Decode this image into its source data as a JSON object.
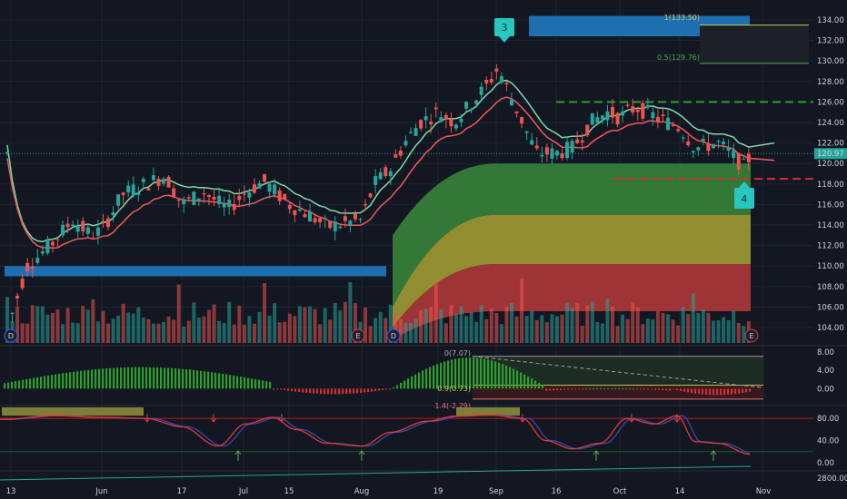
{
  "chart_data": {
    "type": "candlestick",
    "title": "",
    "ylim": [
      102.5,
      135.5
    ],
    "y_ticks": [
      "134.00",
      "132.00",
      "130.00",
      "128.00",
      "126.00",
      "124.00",
      "122.00",
      "120.00",
      "118.00",
      "116.00",
      "114.00",
      "112.00",
      "110.00",
      "108.00",
      "106.00",
      "104.00"
    ],
    "x_ticks": [
      "13",
      "Jun",
      "17",
      "Jul",
      "15",
      "Aug",
      "19",
      "Sep",
      "16",
      "Oct",
      "14",
      "Nov"
    ],
    "last_price": "120.97",
    "last_price_value": 120.97,
    "fib_labels": [
      "1(133.50)",
      "0.5(129.76)"
    ],
    "fib_values": [
      133.5,
      129.76
    ],
    "resistance_level": 126.0,
    "support_level": 118.5,
    "wave_labels": [
      "3",
      "4"
    ],
    "event_markers": [
      "D",
      "E",
      "D",
      "E"
    ],
    "osc_labels": [
      "0(7.07)",
      "0.9(0.73)",
      "1.4(-2.29)"
    ],
    "macd_ticks": [
      "8.00",
      "4.00",
      "0.00"
    ],
    "macd_ylim": [
      -3.5,
      9
    ],
    "stoch_ticks": [
      "80.00",
      "40.00",
      "0.00"
    ],
    "stoch_ylim": [
      -10,
      100
    ],
    "volume_tick": "2800.00",
    "colors": {
      "up": "#26a69a",
      "down": "#ef5350",
      "ema_fast": "#7fd9a8",
      "ema_slow": "#f05a5a",
      "blue_box": "#1e6fb0",
      "green_zone": "#3a8a3a",
      "yellow_zone": "#a8a232",
      "red_zone": "#b73a3a",
      "bubble": "#28c8c0",
      "macd_up": "#2e9e2e",
      "macd_down": "#d32f2f",
      "stoch_k": "#e53935",
      "stoch_d": "#3949ab"
    }
  }
}
